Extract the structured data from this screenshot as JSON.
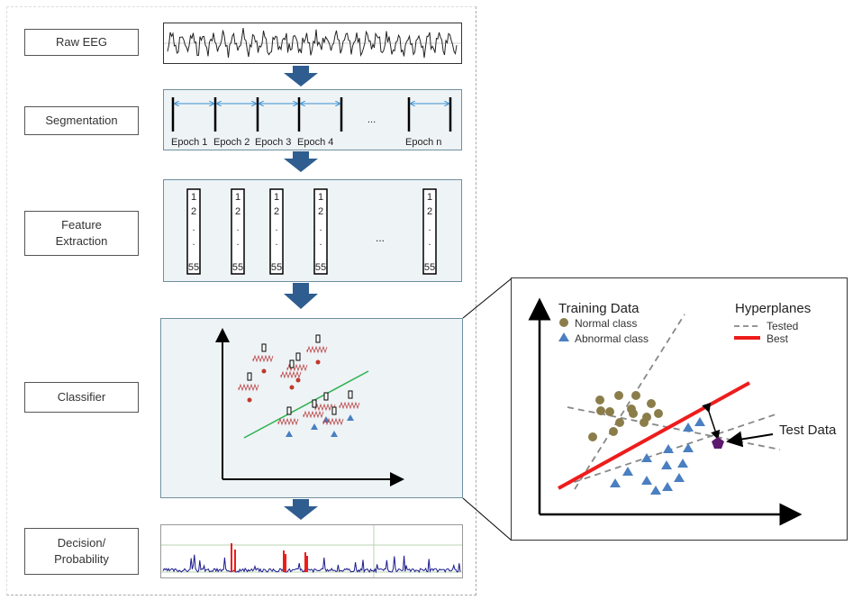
{
  "stages": {
    "raw_eeg": "Raw EEG",
    "segmentation": "Segmentation",
    "feature_extraction": "Feature Extraction",
    "classifier": "Classifier",
    "decision": "Decision/ Probability"
  },
  "segmentation": {
    "epochs": [
      "Epoch 1",
      "Epoch 2",
      "Epoch 3",
      "Epoch 4"
    ],
    "ellipsis": "...",
    "last_epoch": "Epoch n"
  },
  "features": {
    "entries": [
      "1",
      "2",
      ".",
      ".",
      "55"
    ],
    "ellipsis": "..."
  },
  "zoom": {
    "training_title": "Training Data",
    "normal_label": "Normal class",
    "abnormal_label": "Abnormal class",
    "hyperplanes_title": "Hyperplanes",
    "tested_label": "Tested",
    "best_label": "Best",
    "test_data_label": "Test Data"
  },
  "colors": {
    "arrow": "#2f5d8f",
    "normal_point": "#8b7d4a",
    "abnormal_point": "#4a7fc1",
    "best_line": "#ee1c1c",
    "test_point": "#5b1a6e",
    "classifier_line": "#2bb24c"
  }
}
